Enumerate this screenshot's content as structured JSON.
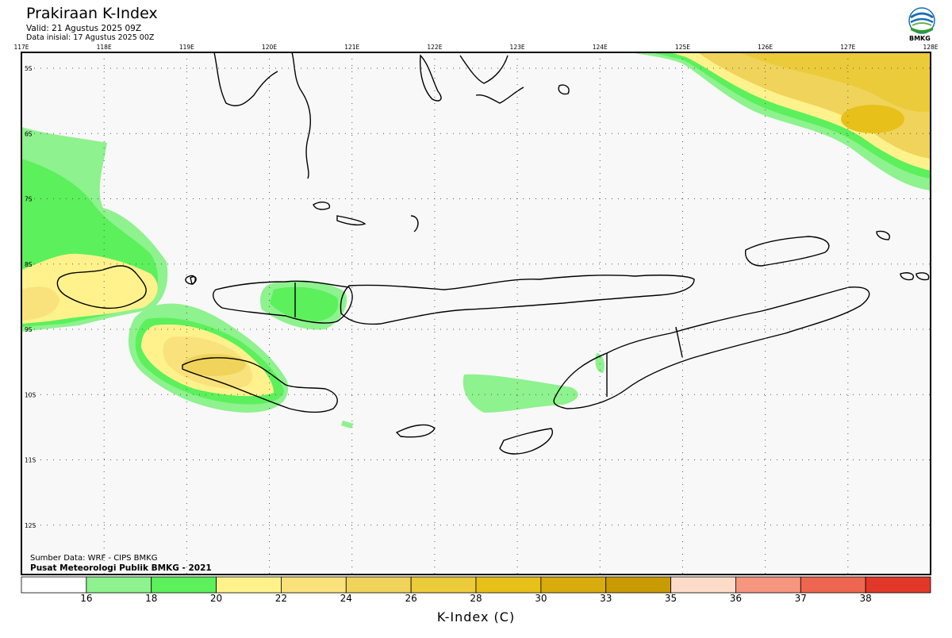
{
  "header": {
    "title": "Prakiraan K-Index",
    "valid": "Valid: 21 Agustus 2025 09Z",
    "data_inisial": "Data inisial: 17 Agustus 2025 00Z"
  },
  "logo": {
    "text": "BMKG",
    "icon": "bmkg-logo-icon"
  },
  "map": {
    "lon_labels": [
      "117E",
      "118E",
      "119E",
      "120E",
      "121E",
      "122E",
      "123E",
      "124E",
      "125E",
      "126E",
      "127E",
      "128E"
    ],
    "lat_labels": [
      "5S",
      "6S",
      "7S",
      "8S",
      "9S",
      "10S",
      "11S",
      "12S"
    ],
    "extent": {
      "lon": [
        117,
        128
      ],
      "lat": [
        -5,
        -13
      ]
    },
    "grid": true
  },
  "footer": {
    "source": "Sumber Data: WRF - CIPS BMKG",
    "credit": "Pusat Meteorologi Publik BMKG - 2021"
  },
  "legend": {
    "title": "K-Index (C)",
    "ticks": [
      "16",
      "18",
      "20",
      "22",
      "24",
      "26",
      "28",
      "30",
      "33",
      "35",
      "36",
      "37",
      "38"
    ],
    "colors": [
      "#ffffff",
      "#8ef28e",
      "#5cf05c",
      "#fff28c",
      "#f9e27c",
      "#f0d35a",
      "#eccb3a",
      "#e8c01a",
      "#d8ac0c",
      "#c89a04",
      "#fcdcc8",
      "#f6967e",
      "#ee6650",
      "#e2382a"
    ]
  }
}
